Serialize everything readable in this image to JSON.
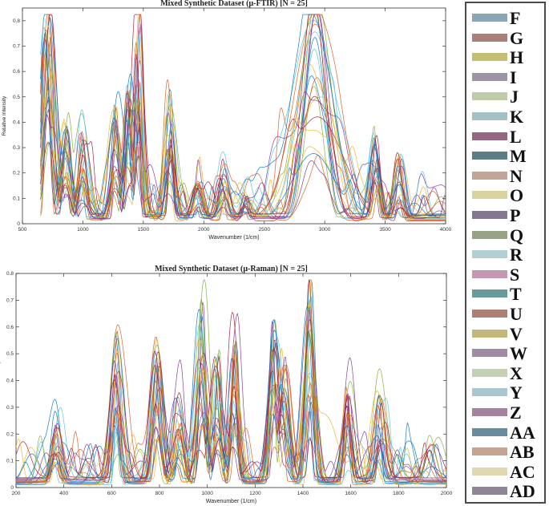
{
  "chart_data": [
    {
      "type": "line",
      "title": "Mixed Synthetic Dataset (μ-FTIR) [N = 25]",
      "xlabel": "Wavenumber (1/cm)",
      "ylabel": "Relative Intensity",
      "xlim": [
        500,
        4000
      ],
      "ylim": [
        0,
        0.85
      ],
      "xticks": [
        500,
        1000,
        1500,
        2000,
        2500,
        3000,
        3500,
        4000
      ],
      "yticks": [
        0,
        0.1,
        0.2,
        0.3,
        0.4,
        0.5,
        0.6,
        0.7,
        0.8
      ],
      "series_count": 25,
      "x_range": [
        650,
        4000
      ],
      "envelope_peaks": [
        {
          "x": 700,
          "y": 0.7
        },
        {
          "x": 720,
          "y": 0.76
        },
        {
          "x": 860,
          "y": 0.37
        },
        {
          "x": 1000,
          "y": 0.32
        },
        {
          "x": 1270,
          "y": 0.42
        },
        {
          "x": 1380,
          "y": 0.49
        },
        {
          "x": 1460,
          "y": 0.77
        },
        {
          "x": 1720,
          "y": 0.47
        },
        {
          "x": 1950,
          "y": 0.15
        },
        {
          "x": 2160,
          "y": 0.15
        },
        {
          "x": 2350,
          "y": 0.1
        },
        {
          "x": 2920,
          "y": 0.81
        },
        {
          "x": 3420,
          "y": 0.32
        },
        {
          "x": 3620,
          "y": 0.25
        }
      ]
    },
    {
      "type": "line",
      "title": "Mixed Synthetic Dataset (μ-Raman) [N = 25]",
      "xlabel": "Wavenumber (1/cm)",
      "ylabel": "Relative Intensity",
      "xlim": [
        200,
        2000
      ],
      "ylim": [
        0,
        0.8
      ],
      "xticks": [
        200,
        400,
        600,
        800,
        1000,
        1200,
        1400,
        1600,
        1800,
        2000
      ],
      "yticks": [
        0,
        0.1,
        0.2,
        0.3,
        0.4,
        0.5,
        0.6,
        0.7,
        0.8
      ],
      "series_count": 25,
      "x_range": [
        200,
        2000
      ],
      "envelope_peaks": [
        {
          "x": 370,
          "y": 0.22
        },
        {
          "x": 620,
          "y": 0.52
        },
        {
          "x": 790,
          "y": 0.46
        },
        {
          "x": 880,
          "y": 0.33
        },
        {
          "x": 975,
          "y": 0.63
        },
        {
          "x": 1040,
          "y": 0.44
        },
        {
          "x": 1110,
          "y": 0.49
        },
        {
          "x": 1280,
          "y": 0.55
        },
        {
          "x": 1320,
          "y": 0.41
        },
        {
          "x": 1430,
          "y": 0.76
        },
        {
          "x": 1590,
          "y": 0.35
        },
        {
          "x": 1720,
          "y": 0.31
        }
      ]
    }
  ],
  "legend": {
    "placement": "right",
    "entries": [
      {
        "label": "F",
        "color": "#8ba7b5"
      },
      {
        "label": "G",
        "color": "#a97f79"
      },
      {
        "label": "H",
        "color": "#c2be74"
      },
      {
        "label": "I",
        "color": "#9d94a6"
      },
      {
        "label": "J",
        "color": "#bfcba9"
      },
      {
        "label": "K",
        "color": "#a6c1c6"
      },
      {
        "label": "L",
        "color": "#94667f"
      },
      {
        "label": "M",
        "color": "#5c7c86"
      },
      {
        "label": "N",
        "color": "#c0a599"
      },
      {
        "label": "O",
        "color": "#d9d3a0"
      },
      {
        "label": "P",
        "color": "#847891"
      },
      {
        "label": "Q",
        "color": "#97a287"
      },
      {
        "label": "R",
        "color": "#b3ced4"
      },
      {
        "label": "S",
        "color": "#c398b0"
      },
      {
        "label": "T",
        "color": "#6a9b9b"
      },
      {
        "label": "U",
        "color": "#ad8075"
      },
      {
        "label": "V",
        "color": "#c2b67a"
      },
      {
        "label": "W",
        "color": "#9f8ca3"
      },
      {
        "label": "X",
        "color": "#c5cfb3"
      },
      {
        "label": "Y",
        "color": "#a8c7d1"
      },
      {
        "label": "Z",
        "color": "#a5809f"
      },
      {
        "label": "AA",
        "color": "#6b8a9b"
      },
      {
        "label": "AB",
        "color": "#c4a594"
      },
      {
        "label": "AC",
        "color": "#e1d7b1"
      },
      {
        "label": "AD",
        "color": "#8e8595"
      }
    ]
  },
  "line_colors": [
    "#0072BD",
    "#D95319",
    "#EDB120",
    "#7E2F8E",
    "#77AC30",
    "#4DBEEE",
    "#A2142F"
  ]
}
